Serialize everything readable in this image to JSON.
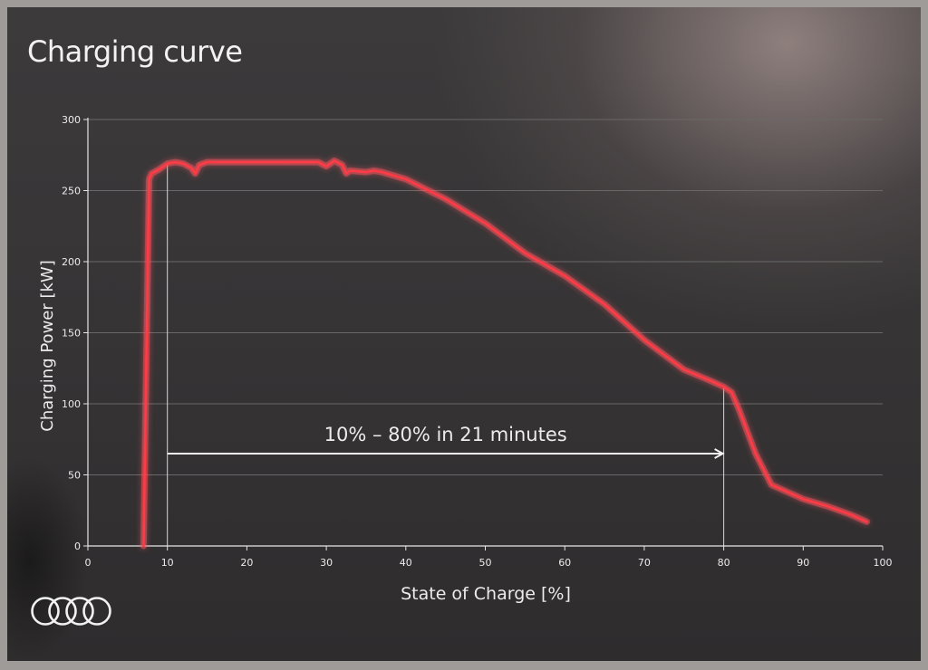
{
  "slide": {
    "title": "Charging curve"
  },
  "brand": {
    "logo_icon": "four-rings-logo"
  },
  "colors": {
    "curve": "#ff3b45",
    "curve_glow": "#ff5560",
    "axis": "#e6e6e6",
    "grid": "#6a6768",
    "text": "#ececec",
    "annotation": "#f4f4f4"
  },
  "chart_data": {
    "type": "line",
    "title": "",
    "xlabel": "State of Charge [%]",
    "ylabel": "Charging Power [kW]",
    "xlim": [
      0,
      100
    ],
    "ylim": [
      0,
      300
    ],
    "x_ticks": [
      0,
      10,
      20,
      30,
      40,
      50,
      60,
      70,
      80,
      90,
      100
    ],
    "y_ticks": [
      0,
      50,
      100,
      150,
      200,
      250,
      300
    ],
    "grid": "horizontal",
    "legend": "none",
    "series": [
      {
        "x": [
          7,
          7.7,
          8,
          9,
          10,
          11,
          12,
          13,
          13.5,
          14,
          15,
          20,
          25,
          29,
          30,
          31,
          32,
          32.5,
          33,
          35,
          36,
          37,
          40,
          45,
          50,
          55,
          60,
          65,
          70,
          75,
          78,
          80,
          81,
          82,
          84,
          86,
          88,
          90,
          93,
          96,
          98
        ],
        "y": [
          0,
          258,
          262,
          265,
          269,
          270,
          269,
          266,
          262,
          268,
          270,
          270,
          270,
          270,
          267,
          271,
          268,
          262,
          264,
          263,
          264,
          263,
          258,
          244,
          227,
          206,
          190,
          170,
          145,
          124,
          117,
          112,
          108,
          95,
          65,
          43,
          38,
          33,
          28,
          22,
          17
        ]
      }
    ],
    "annotations": [
      {
        "text": "10% – 80% in 21 minutes",
        "type": "double-arrow-range",
        "x_start": 10,
        "x_end": 80,
        "y": 65
      }
    ],
    "reference_lines": [
      {
        "x": 10,
        "y_top": 269
      },
      {
        "x": 80,
        "y_top": 112
      }
    ]
  }
}
